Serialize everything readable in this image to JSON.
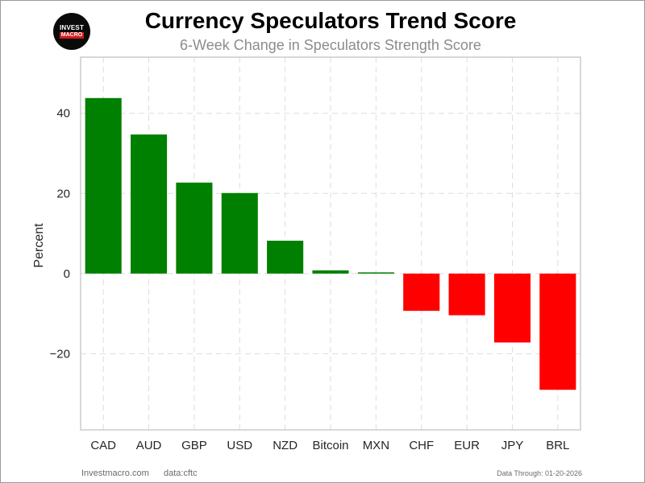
{
  "logo": {
    "line1": "INVEST",
    "line2": "MACRO"
  },
  "footer": {
    "site": "Investmacro.com",
    "source": "data:cftc",
    "date": "Data Through: 01-20-2026"
  },
  "colors": {
    "positive": "#008000",
    "negative": "#ff0000",
    "grid": "#dddddd",
    "axes": "#cccccc"
  },
  "chart_data": {
    "type": "bar",
    "title": "Currency Speculators Trend Score",
    "subtitle": "6-Week Change in Speculators Strength Score",
    "xlabel": "",
    "ylabel": "Percent",
    "ylim": [
      -39,
      54
    ],
    "yticks": [
      {
        "value": 40,
        "label": "40"
      },
      {
        "value": 20,
        "label": "20"
      },
      {
        "value": 0,
        "label": "0"
      },
      {
        "value": -20,
        "label": "−20"
      }
    ],
    "grid": true,
    "categories": [
      "CAD",
      "AUD",
      "GBP",
      "USD",
      "NZD",
      "Bitcoin",
      "MXN",
      "CHF",
      "EUR",
      "JPY",
      "BRL"
    ],
    "values": [
      43.8,
      34.7,
      22.7,
      20.1,
      8.2,
      0.8,
      0.3,
      -9.3,
      -10.4,
      -17.2,
      -29.0
    ]
  }
}
